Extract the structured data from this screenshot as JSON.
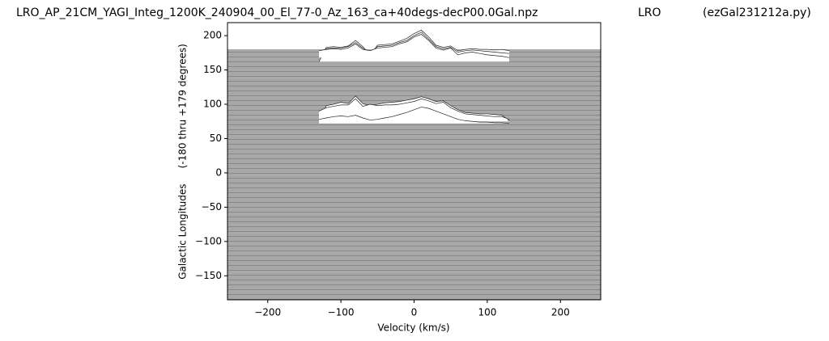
{
  "chart_data": {
    "type": "waterfall",
    "title": "LRO_AP_21CM_YAGI_Integ_1200K_240904_00_El_77-0_Az_163_ca+40degs-decP00.0Gal.npz",
    "subtitle": "LRO",
    "annotation": "(ezGal231212a.py)",
    "x_label": "Velocity (km/s)",
    "y_label": "Galactic Longitudes     (-180 thru +179 degrees)",
    "xlim": [
      -255,
      255
    ],
    "ylim": [
      -185,
      219
    ],
    "xticks": [
      {
        "value": -200,
        "label": "−200"
      },
      {
        "value": -100,
        "label": "−100"
      },
      0,
      100,
      200
    ],
    "yticks": [
      {
        "value": -150,
        "label": "−150"
      },
      {
        "value": -100,
        "label": "−100"
      },
      {
        "value": -50,
        "label": "−50"
      },
      0,
      50,
      100,
      150,
      200
    ],
    "x": [
      -130,
      -120,
      -110,
      -100,
      -90,
      -80,
      -70,
      -60,
      -50,
      -40,
      -30,
      -20,
      -10,
      0,
      10,
      20,
      30,
      40,
      50,
      60,
      70,
      80,
      90,
      100,
      110,
      120,
      130
    ],
    "series": [
      {
        "color": "#222222",
        "values": [
          162,
          183,
          184,
          183,
          185,
          193,
          184,
          171,
          186,
          187,
          188,
          192,
          196,
          203,
          208,
          198,
          186,
          183,
          185,
          178,
          180,
          181,
          180,
          180,
          179,
          180,
          178
        ]
      },
      {
        "color": "#222222",
        "values": [
          175,
          181,
          182,
          182,
          184,
          190,
          182,
          176,
          184,
          185,
          186,
          190,
          193,
          200,
          205,
          195,
          184,
          181,
          183,
          176,
          178,
          179,
          178,
          177,
          176,
          175,
          174
        ]
      },
      {
        "color": "#222222",
        "values": [
          178,
          180,
          181,
          180,
          182,
          188,
          180,
          178,
          182,
          183,
          184,
          188,
          191,
          198,
          202,
          193,
          182,
          179,
          182,
          172,
          175,
          176,
          174,
          172,
          171,
          170,
          168
        ]
      },
      {
        "color": "#222222",
        "values": [
          75,
          98,
          100,
          103,
          101,
          112,
          101,
          98,
          100,
          102,
          103,
          104,
          106,
          108,
          111,
          108,
          104,
          105,
          98,
          92,
          88,
          87,
          86,
          86,
          85,
          84,
          76
        ]
      },
      {
        "color": "#222222",
        "values": [
          90,
          95,
          97,
          99,
          99,
          108,
          97,
          100,
          98,
          99,
          99,
          100,
          102,
          104,
          108,
          105,
          101,
          103,
          95,
          90,
          86,
          85,
          84,
          83,
          82,
          82,
          78
        ]
      },
      {
        "color": "#222222",
        "values": [
          78,
          80,
          82,
          83,
          82,
          84,
          80,
          77,
          78,
          80,
          82,
          85,
          88,
          92,
          96,
          94,
          90,
          86,
          82,
          78,
          76,
          75,
          74,
          74,
          73,
          73,
          72
        ]
      }
    ]
  }
}
